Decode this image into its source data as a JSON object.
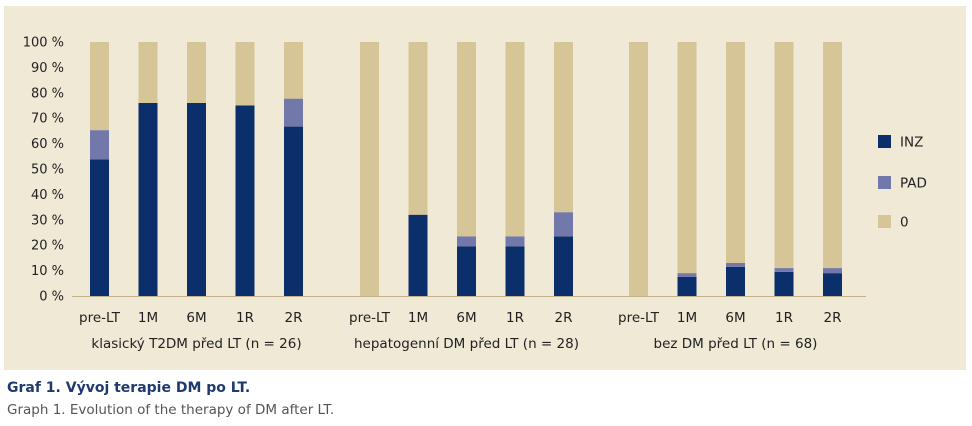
{
  "chart_data": {
    "type": "bar",
    "stacked": true,
    "ylim": [
      0,
      100
    ],
    "yticks": [
      "0 %",
      "10 %",
      "20 %",
      "30 %",
      "40 %",
      "50 %",
      "60 %",
      "70 %",
      "80 %",
      "90 %",
      "100 %"
    ],
    "grid": false,
    "legend_position": "right",
    "colors": {
      "INZ": "#0b2f6b",
      "PAD": "#7378ab",
      "0": "#d6c597"
    },
    "groups": [
      {
        "label": "klasický T2DM před LT (n = 26)",
        "categories": [
          "pre-LT",
          "1M",
          "6M",
          "1R",
          "2R"
        ],
        "series": [
          {
            "name": "INZ",
            "values": [
              53.8,
              76.0,
              76.0,
              75.0,
              66.7
            ]
          },
          {
            "name": "PAD",
            "values": [
              11.5,
              0,
              0,
              0,
              11.0
            ]
          },
          {
            "name": "0",
            "values": [
              34.7,
              24.0,
              24.0,
              25.0,
              22.3
            ]
          }
        ]
      },
      {
        "label": "hepatogenní DM před LT (n = 28)",
        "categories": [
          "pre-LT",
          "1M",
          "6M",
          "1R",
          "2R"
        ],
        "series": [
          {
            "name": "INZ",
            "values": [
              0,
              32.0,
              19.5,
              19.5,
              23.5
            ]
          },
          {
            "name": "PAD",
            "values": [
              0,
              0,
              4.0,
              4.0,
              9.5
            ]
          },
          {
            "name": "0",
            "values": [
              100,
              68.0,
              76.5,
              76.5,
              67.0
            ]
          }
        ]
      },
      {
        "label": "bez DM před LT (n = 68)",
        "categories": [
          "pre-LT",
          "1M",
          "6M",
          "1R",
          "2R"
        ],
        "series": [
          {
            "name": "INZ",
            "values": [
              0,
              7.5,
              11.5,
              9.5,
              9.0
            ]
          },
          {
            "name": "PAD",
            "values": [
              0,
              1.5,
              1.5,
              1.5,
              2.0
            ]
          },
          {
            "name": "0",
            "values": [
              100,
              91.0,
              87.0,
              89.0,
              89.0
            ]
          }
        ]
      }
    ],
    "legend": [
      "INZ",
      "PAD",
      "0"
    ]
  },
  "caption": {
    "cz": "Graf 1. Vývoj terapie DM po LT.",
    "en": "Graph 1. Evolution of the therapy of DM after LT."
  }
}
